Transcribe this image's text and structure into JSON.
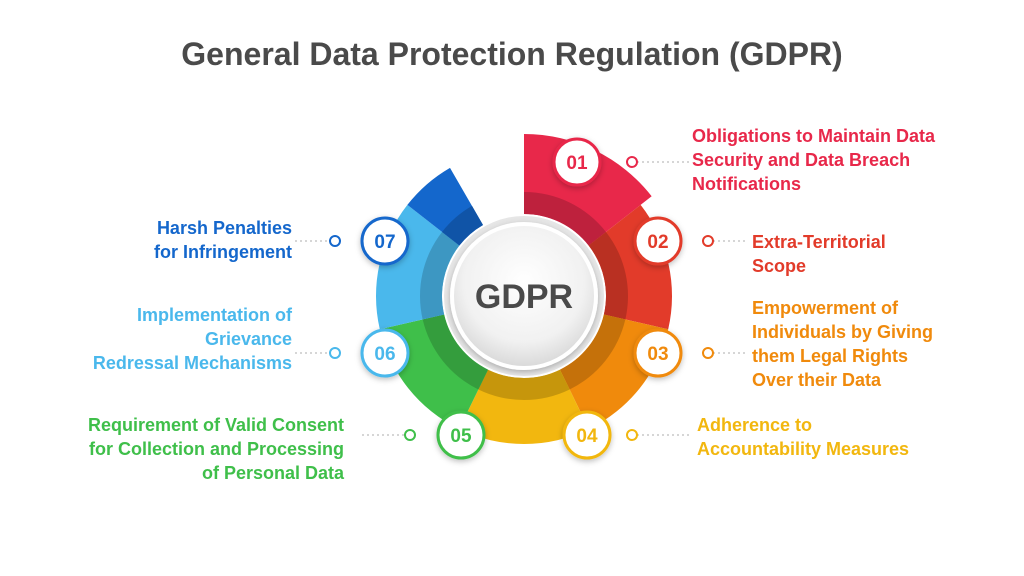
{
  "title": "General Data Protection Regulation (GDPR)",
  "center_label": "GDPR",
  "items": [
    {
      "number": "01",
      "lines": [
        "Obligations to Maintain Data",
        "Security and Data Breach",
        "Notifications"
      ],
      "color": "#e8284a"
    },
    {
      "number": "02",
      "lines": [
        "Extra-Territorial",
        "Scope"
      ],
      "color": "#e23b2a"
    },
    {
      "number": "03",
      "lines": [
        "Empowerment of",
        "Individuals by Giving",
        "them Legal Rights",
        "Over their Data"
      ],
      "color": "#f08a0c"
    },
    {
      "number": "04",
      "lines": [
        "Adherence to",
        "Accountability Measures"
      ],
      "color": "#f2b70f"
    },
    {
      "number": "05",
      "lines": [
        "Requirement of Valid Consent",
        "for Collection and Processing",
        "of Personal Data"
      ],
      "color": "#3fbf4a"
    },
    {
      "number": "06",
      "lines": [
        "Implementation of",
        "Grievance",
        "Redressal Mechanisms"
      ],
      "color": "#4ab8ec"
    },
    {
      "number": "07",
      "lines": [
        "Harsh Penalties",
        "for Infringement"
      ],
      "color": "#1467cc"
    }
  ]
}
